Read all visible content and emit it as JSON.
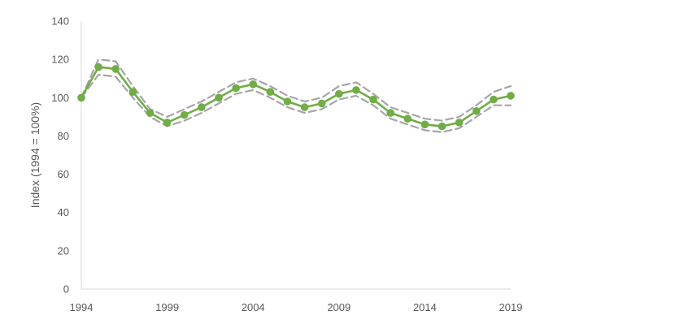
{
  "chart_data": {
    "type": "line",
    "title": "",
    "xlabel": "",
    "ylabel": "Index (1994 = 100%)",
    "xlim": [
      1994,
      2019
    ],
    "ylim": [
      0,
      140
    ],
    "x_ticks": [
      "1994",
      "1999",
      "2004",
      "2009",
      "2014",
      "2019"
    ],
    "y_ticks": [
      "0",
      "20",
      "40",
      "60",
      "80",
      "100",
      "120",
      "140"
    ],
    "grid": false,
    "legend": "none",
    "x": [
      1994,
      1995,
      1996,
      1997,
      1998,
      1999,
      2000,
      2001,
      2002,
      2003,
      2004,
      2005,
      2006,
      2007,
      2008,
      2009,
      2010,
      2011,
      2012,
      2013,
      2014,
      2015,
      2016,
      2017,
      2018,
      2019
    ],
    "series": [
      {
        "role": "estimate",
        "color": "#70AD47",
        "marker_color": "#70AD47",
        "values": [
          100,
          116,
          115,
          103,
          92,
          87,
          91,
          95,
          100,
          105,
          107,
          103,
          98,
          95,
          97,
          102,
          104,
          99,
          92,
          89,
          86,
          85,
          87,
          93,
          99,
          101
        ]
      },
      {
        "role": "upper_bound",
        "color": "#A6A6A6",
        "dashed": true,
        "values": [
          100,
          120,
          119,
          106,
          94,
          90,
          94,
          98,
          103,
          108,
          110,
          106,
          101,
          98,
          100,
          106,
          108,
          102,
          95,
          92,
          89,
          88,
          90,
          96,
          103,
          106
        ]
      },
      {
        "role": "lower_bound",
        "color": "#A6A6A6",
        "dashed": true,
        "values": [
          100,
          112,
          111,
          100,
          90,
          85,
          88,
          92,
          97,
          102,
          104,
          100,
          95,
          92,
          94,
          99,
          101,
          96,
          89,
          86,
          83,
          82,
          84,
          90,
          96,
          96
        ]
      }
    ]
  }
}
